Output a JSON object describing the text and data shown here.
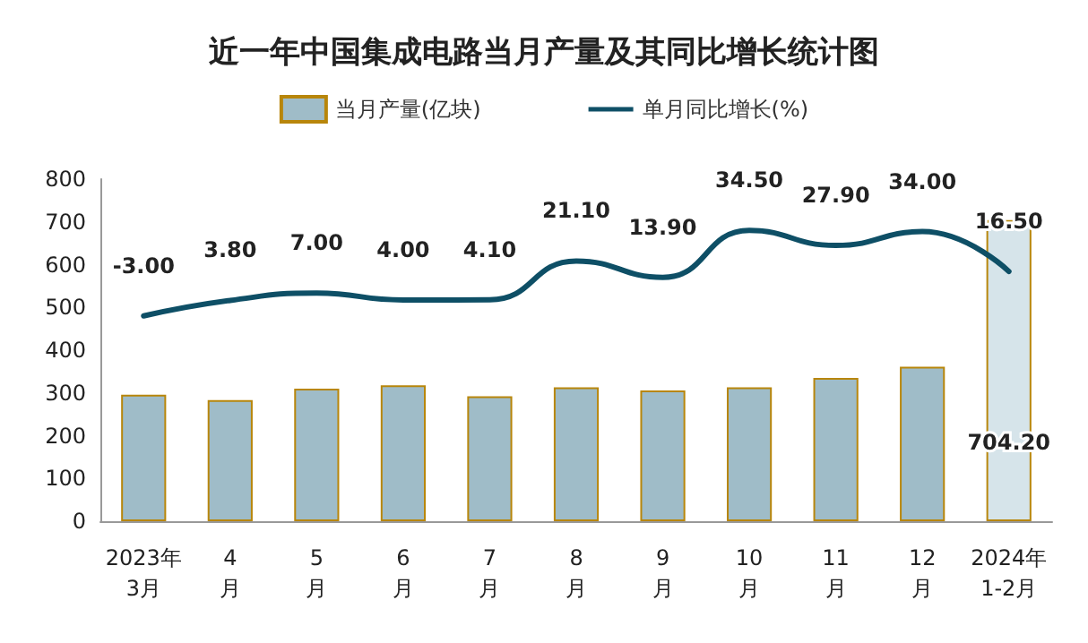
{
  "chart_data": {
    "type": "bar",
    "title": "近一年中国集成电路当月产量及其同比增长统计图",
    "categories": [
      "2023年\n3月",
      "4\n月",
      "5\n月",
      "6\n月",
      "7\n月",
      "8\n月",
      "9\n月",
      "10\n月",
      "11\n月",
      "12\n月",
      "2024年\n1-2月"
    ],
    "series": [
      {
        "name": "当月产量(亿块)",
        "color": "#9fbcc8",
        "colors": [
          "#9fbcc8",
          "#9fbcc8",
          "#9fbcc8",
          "#9fbcc8",
          "#9fbcc8",
          "#9fbcc8",
          "#9fbcc8",
          "#9fbcc8",
          "#9fbcc8",
          "#9fbcc8",
          "#d6e4ea"
        ],
        "values": [
          296,
          283,
          310,
          318,
          292,
          313,
          306,
          313,
          335,
          361,
          704.2
        ],
        "value_labels": [
          null,
          null,
          null,
          null,
          null,
          null,
          null,
          null,
          null,
          null,
          "704.20"
        ]
      },
      {
        "name": "单月同比增长(%)",
        "type": "line",
        "axis": "y2",
        "color": "#0e4f66",
        "values": [
          -3.0,
          3.8,
          7.0,
          4.0,
          4.1,
          21.1,
          13.9,
          34.5,
          27.9,
          34.0,
          16.5
        ],
        "value_labels": [
          "-3.00",
          "3.80",
          "7.00",
          "4.00",
          "4.10",
          "21.10",
          "13.90",
          "34.50",
          "27.90",
          "34.00",
          "16.50"
        ]
      }
    ],
    "ylim": [
      0,
      800
    ],
    "yticks": [
      0,
      100,
      200,
      300,
      400,
      500,
      600,
      700,
      800
    ],
    "tick_labels": "x_and_y",
    "grid": false,
    "legend": "top",
    "marker": "none",
    "line_style": "solid"
  }
}
